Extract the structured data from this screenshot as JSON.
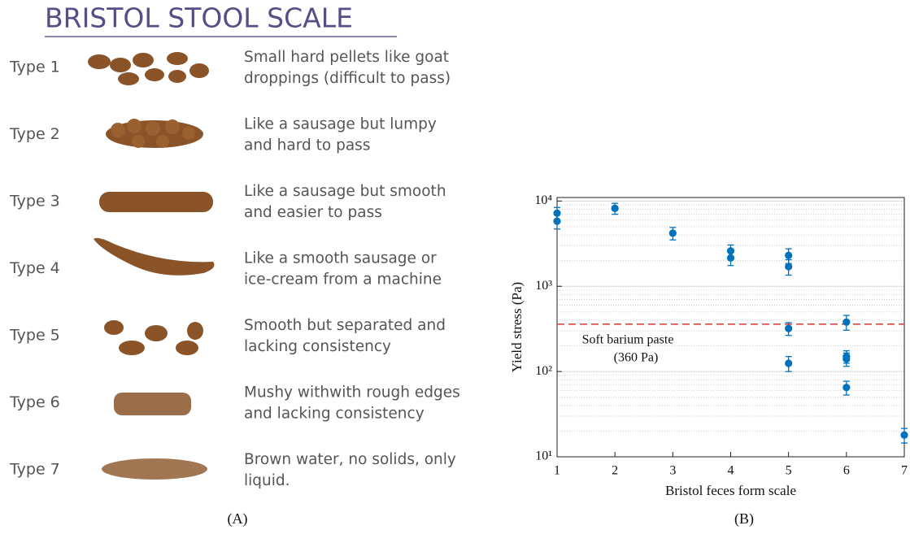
{
  "panel_a": {
    "title": "BRISTOL STOOL SCALE",
    "rows": [
      {
        "type": "Type 1",
        "description": [
          "Small hard pellets like goat",
          "droppings (difficult to pass)"
        ]
      },
      {
        "type": "Type 2",
        "description": [
          "Like a sausage but lumpy",
          "and hard to pass"
        ]
      },
      {
        "type": "Type 3",
        "description": [
          "Like a sausage but smooth",
          "and easier to pass"
        ]
      },
      {
        "type": "Type 4",
        "description": [
          "Like a smooth sausage or",
          "ice-cream from a machine"
        ]
      },
      {
        "type": "Type 5",
        "description": [
          "Smooth but separated and",
          "lacking consistency"
        ]
      },
      {
        "type": "Type 6",
        "description": [
          "Mushy withwith rough edges",
          "and lacking consistency"
        ]
      },
      {
        "type": "Type 7",
        "description": [
          "Brown water, no solids, only",
          "liquid."
        ]
      }
    ],
    "caption": "(A)"
  },
  "chart_data": {
    "type": "scatter",
    "caption": "(B)",
    "xlabel": "Bristol feces form scale",
    "ylabel": "Yield stress (Pa)",
    "xlim": [
      1,
      7
    ],
    "xticks": [
      1,
      2,
      3,
      4,
      5,
      6,
      7
    ],
    "ylim": [
      10,
      11000
    ],
    "log_y": true,
    "grid": true,
    "yticks": [
      {
        "value": 10,
        "label": "10¹"
      },
      {
        "value": 100,
        "label": "10²"
      },
      {
        "value": 1000,
        "label": "10³"
      },
      {
        "value": 10000,
        "label": "10⁴"
      }
    ],
    "series": [
      {
        "name": "Yield stress",
        "color": "#0072bd",
        "x": [
          1,
          1,
          2,
          3,
          4,
          4,
          5,
          5,
          5,
          5,
          6,
          6,
          6,
          6,
          7
        ],
        "values": [
          7200,
          5800,
          8200,
          4200,
          2600,
          2150,
          2300,
          1700,
          320,
          125,
          380,
          150,
          140,
          65,
          18
        ],
        "errors": [
          1200,
          1100,
          1200,
          700,
          450,
          400,
          450,
          350,
          55,
          25,
          75,
          25,
          25,
          12,
          3.5
        ]
      }
    ],
    "reference_line": {
      "value": 360,
      "color": "#e8413c",
      "label": [
        "Soft barium paste",
        "(360 Pa)"
      ]
    }
  }
}
